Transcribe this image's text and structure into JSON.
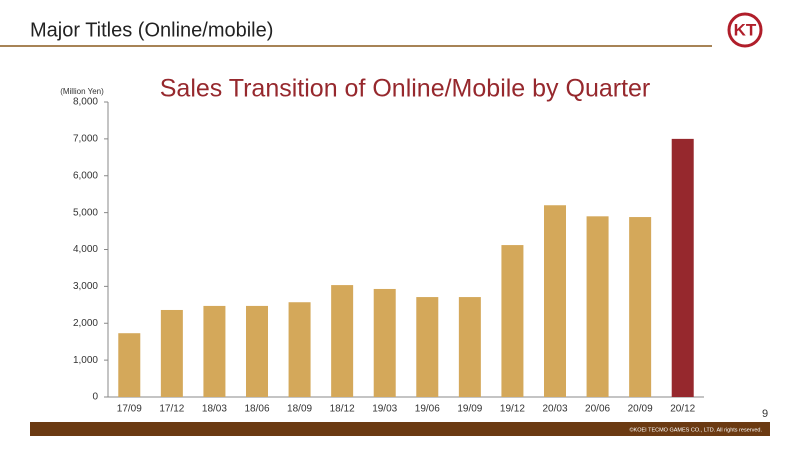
{
  "header": {
    "title": "Major Titles (Online/mobile)",
    "logo": "KT"
  },
  "chart_data": {
    "type": "bar",
    "title": "Sales Transition of Online/Mobile by Quarter",
    "y_label": "(Million Yen)",
    "categories": [
      "17/09",
      "17/12",
      "18/03",
      "18/06",
      "18/09",
      "18/12",
      "19/03",
      "19/06",
      "19/09",
      "19/12",
      "20/03",
      "20/06",
      "20/09",
      "20/12"
    ],
    "values": [
      1730,
      2360,
      2470,
      2470,
      2570,
      3035,
      2930,
      2710,
      2710,
      4120,
      5200,
      4900,
      4880,
      7000
    ],
    "colors": [
      "#d4a85a",
      "#d4a85a",
      "#d4a85a",
      "#d4a85a",
      "#d4a85a",
      "#d4a85a",
      "#d4a85a",
      "#d4a85a",
      "#d4a85a",
      "#d4a85a",
      "#d4a85a",
      "#d4a85a",
      "#d4a85a",
      "#96282d"
    ],
    "ylim": [
      0,
      8000
    ],
    "yticks": [
      0,
      {
        "value": 1000,
        "label": "1,000"
      },
      {
        "value": 2000,
        "label": "2,000"
      },
      {
        "value": 3000,
        "label": "3,000"
      },
      {
        "value": 4000,
        "label": "4,000"
      },
      {
        "value": 5000,
        "label": "5,000"
      },
      {
        "value": 6000,
        "label": "6,000"
      },
      {
        "value": 7000,
        "label": "7,000"
      },
      {
        "value": 8000,
        "label": "8,000"
      }
    ]
  },
  "footer": {
    "page": "9",
    "copyright": "©KOEI TECMO GAMES CO., LTD. All rights reserved."
  }
}
